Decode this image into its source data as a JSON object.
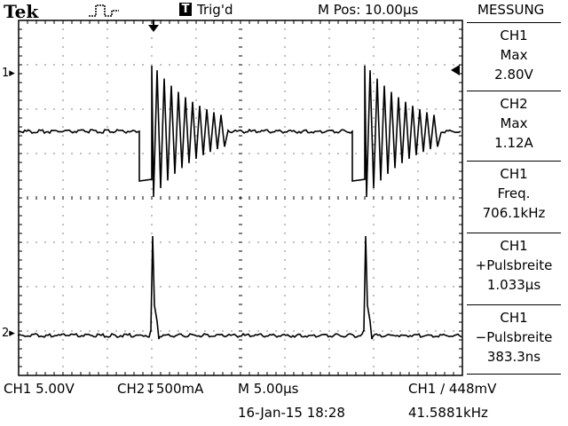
{
  "header": {
    "brand": "Tek",
    "trigger_badge": "T",
    "trigger_status": "Trig'd",
    "horizontal_position": "M Pos: 10.00µs",
    "menu_title": "MESSUNG"
  },
  "measurements": [
    {
      "source": "CH1",
      "type": "Max",
      "value": "2.80V"
    },
    {
      "source": "CH2",
      "type": "Max",
      "value": "1.12A"
    },
    {
      "source": "CH1",
      "type": "Freq.",
      "value": "706.1kHz"
    },
    {
      "source": "CH1",
      "type": "+Pulsbreite",
      "value": "1.033µs"
    },
    {
      "source": "CH1",
      "type": "−Pulsbreite",
      "value": "383.3ns"
    }
  ],
  "footer": {
    "ch1_scale": "CH1  5.00V",
    "ch2_scale": "CH2↧500mA",
    "timebase": "M 5.00µs",
    "trigger_setting": "CH1 ∕ 448mV",
    "date_time": "16-Jan-15 18:28",
    "trigger_frequency": "41.5881kHz"
  },
  "channel_markers": {
    "ch1": "1▸",
    "ch2": "2▸"
  },
  "colors": {
    "background": "#ffffff",
    "trace": "#000000",
    "grid": "#000000"
  }
}
